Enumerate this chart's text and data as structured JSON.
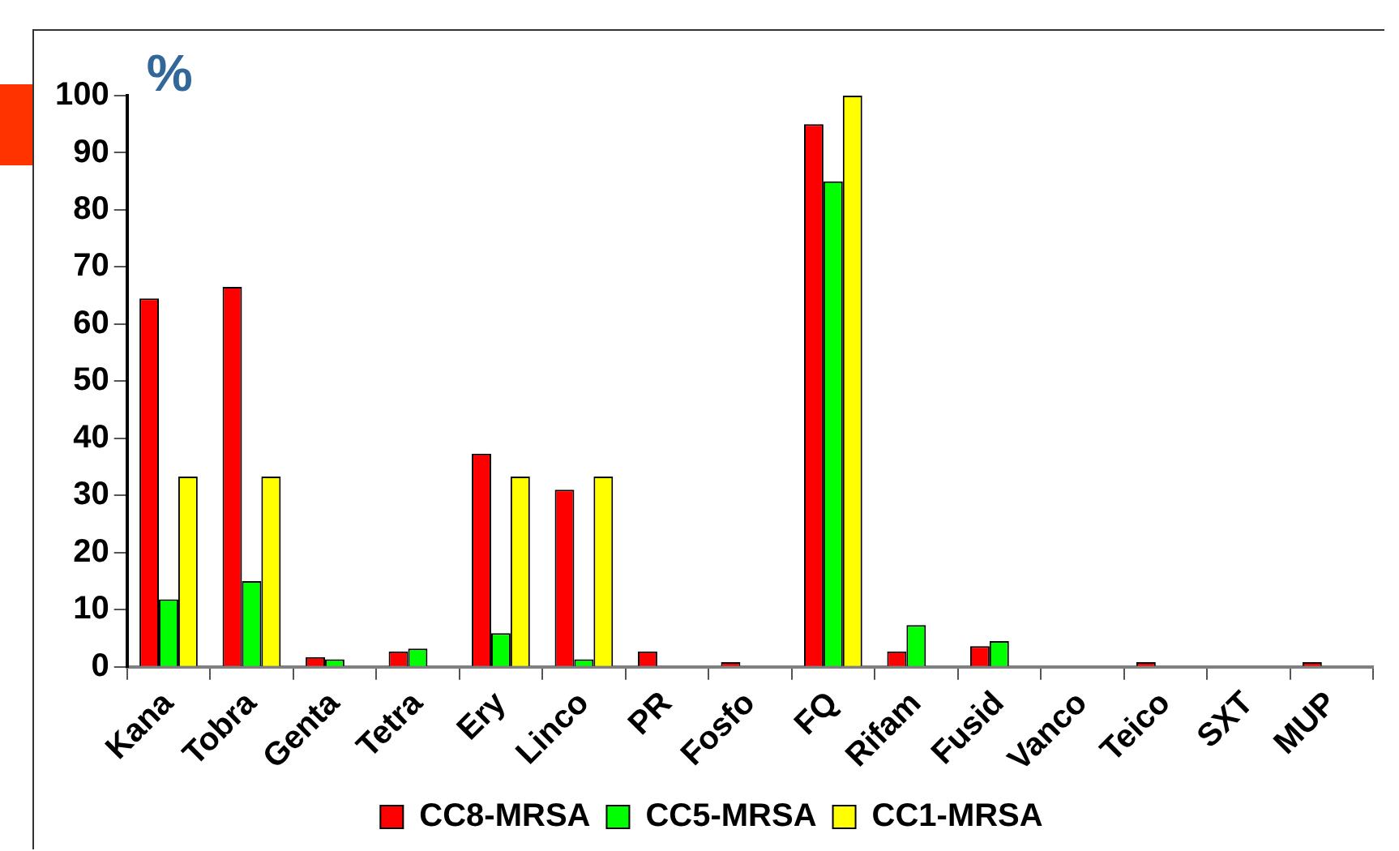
{
  "chart_data": {
    "type": "bar",
    "ylabel": "%",
    "categories": [
      "Kana",
      "Tobra",
      "Genta",
      "Tetra",
      "Ery",
      "Linco",
      "PR",
      "Fosfo",
      "FQ",
      "Rifam",
      "Fusid",
      "Vanco",
      "Teico",
      "SXT",
      "MUP"
    ],
    "series": [
      {
        "name": "CC8-MRSA",
        "color": "#ff0000",
        "values": [
          64.5,
          66.5,
          1.7,
          2.7,
          37.3,
          31,
          2.7,
          0.8,
          95,
          2.7,
          3.6,
          0,
          0.8,
          0,
          0.8
        ]
      },
      {
        "name": "CC5-MRSA",
        "color": "#00ff00",
        "values": [
          11.8,
          15,
          1.3,
          3.2,
          5.9,
          1.3,
          0,
          0,
          85,
          7.3,
          4.5,
          0,
          0,
          0,
          0
        ]
      },
      {
        "name": "CC1-MRSA",
        "color": "#ffff00",
        "values": [
          33.3,
          33.3,
          0,
          0,
          33.3,
          33.3,
          0,
          0,
          100,
          0,
          0,
          0,
          0,
          0,
          0
        ]
      }
    ],
    "ylim": [
      0,
      100
    ],
    "yticks": [
      0,
      10,
      20,
      30,
      40,
      50,
      60,
      70,
      80,
      90,
      100
    ],
    "grid": false,
    "legend": "bottom"
  }
}
